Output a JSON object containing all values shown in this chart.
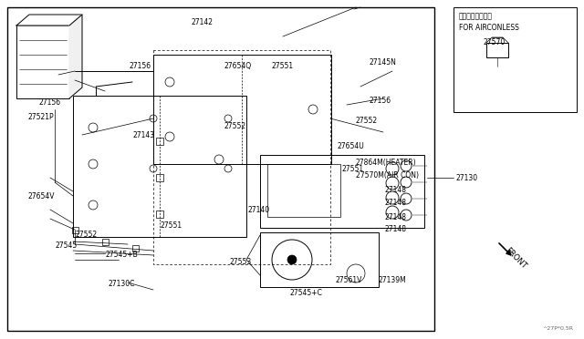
{
  "bg_color": "#ffffff",
  "line_color": "#000000",
  "gray_color": "#666666",
  "watermark": "^27P*0.5R",
  "japanese_text": "エアコン無し仕様",
  "airconless_text": "FOR AIRCONLESS",
  "part_27570_label": "27570",
  "part_27130_label": "27130",
  "front_text": "FRONT"
}
